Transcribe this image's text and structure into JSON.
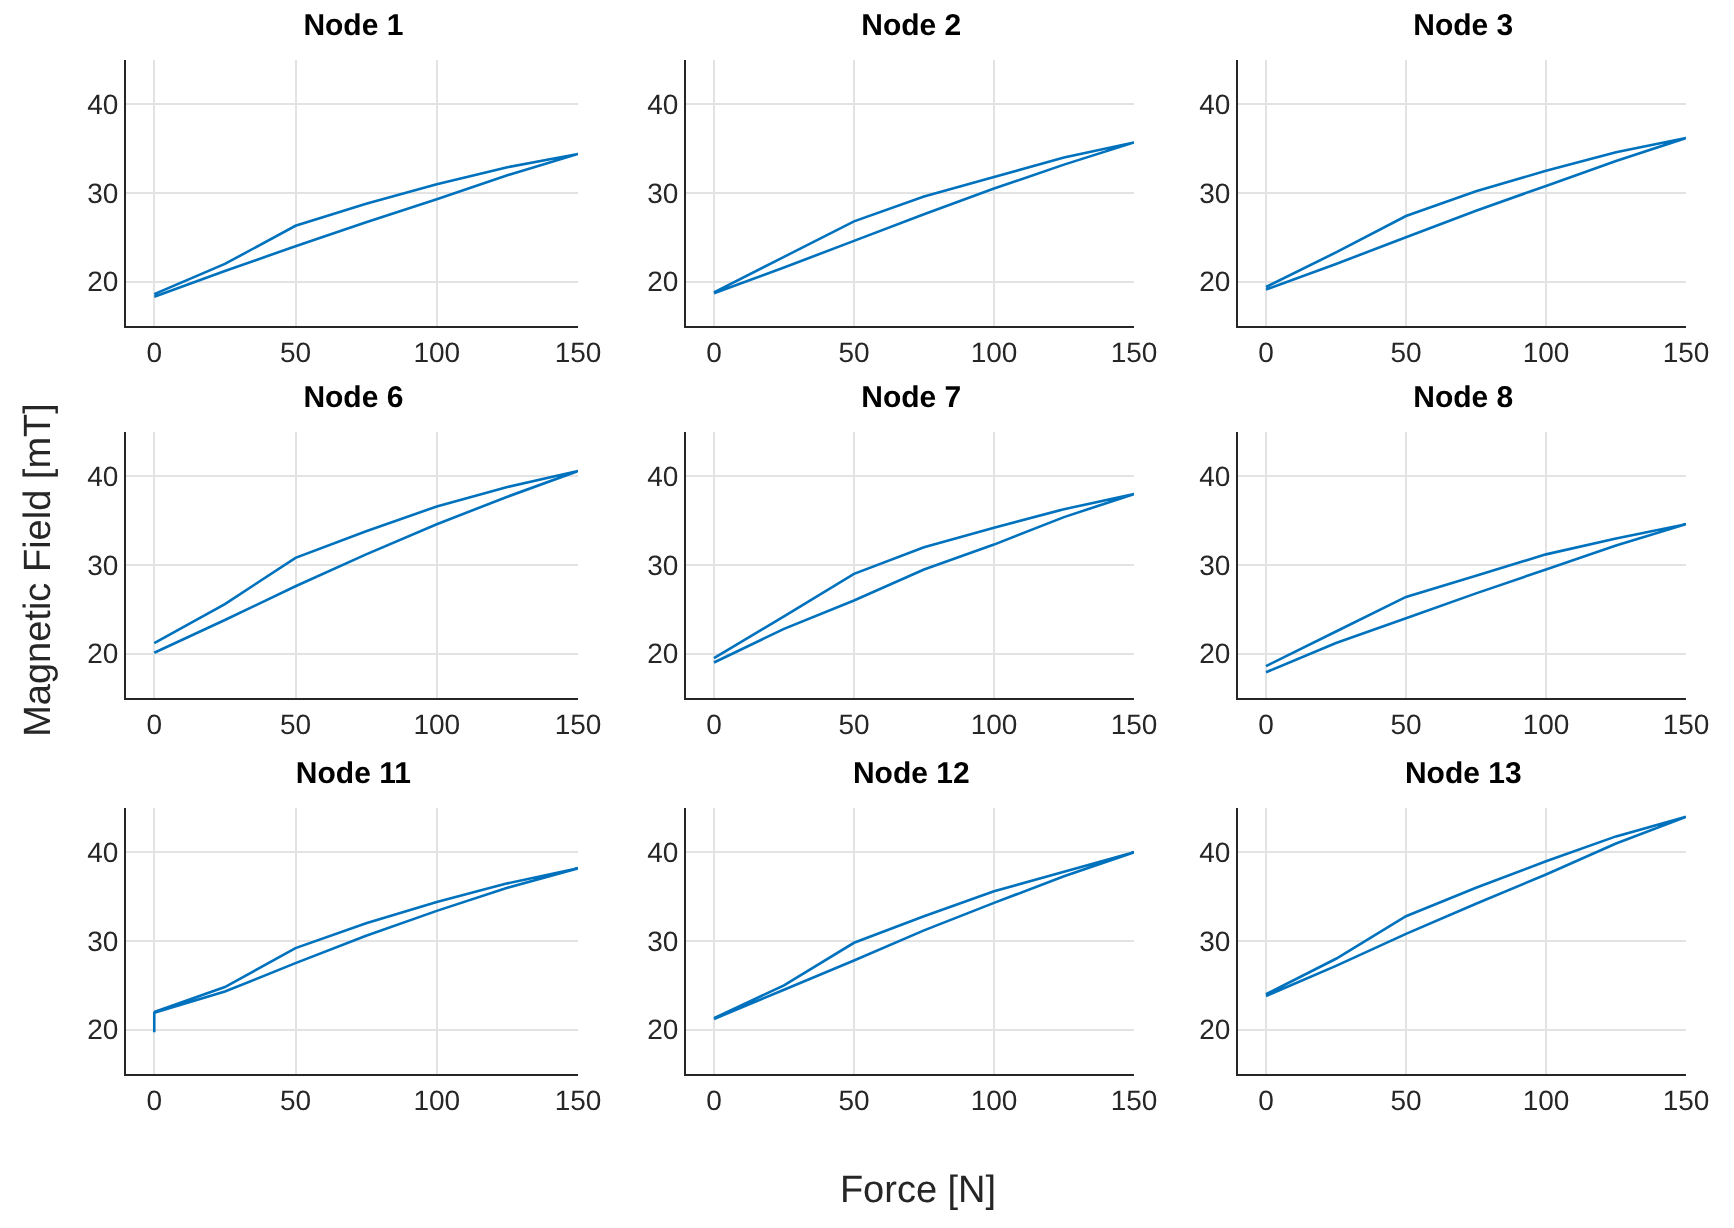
{
  "chart_data": [
    {
      "type": "line",
      "title": "Node 1",
      "x": [
        0,
        25,
        50,
        75,
        100,
        125,
        150,
        125,
        100,
        75,
        50,
        25,
        0
      ],
      "series": [
        {
          "color": "#0072bd",
          "values": [
            18.3,
            21.2,
            24,
            26.7,
            29.3,
            32,
            34.4,
            32.9,
            31,
            28.8,
            26.3,
            22,
            18.6
          ]
        }
      ],
      "xlim": [
        -10,
        150
      ],
      "ylim": [
        15,
        45
      ],
      "xticks": [
        0,
        50,
        100,
        150
      ],
      "yticks": [
        20,
        30,
        40
      ],
      "grid": true,
      "marker": "none",
      "line_style": "solid"
    },
    {
      "type": "line",
      "title": "Node 2",
      "x": [
        0,
        25,
        50,
        75,
        100,
        125,
        150,
        125,
        100,
        75,
        50,
        25,
        0
      ],
      "series": [
        {
          "color": "#0072bd",
          "values": [
            18.7,
            21.6,
            24.6,
            27.6,
            30.5,
            33.2,
            35.7,
            34,
            31.8,
            29.6,
            26.8,
            22.8,
            18.8
          ]
        }
      ],
      "xlim": [
        -10,
        150
      ],
      "ylim": [
        15,
        45
      ],
      "xticks": [
        0,
        50,
        100,
        150
      ],
      "yticks": [
        20,
        30,
        40
      ],
      "grid": true,
      "marker": "none",
      "line_style": "solid"
    },
    {
      "type": "line",
      "title": "Node 3",
      "x": [
        0,
        25,
        50,
        75,
        100,
        125,
        150,
        125,
        100,
        75,
        50,
        25,
        0
      ],
      "series": [
        {
          "color": "#0072bd",
          "values": [
            19.1,
            22,
            25,
            28,
            30.8,
            33.6,
            36.2,
            34.6,
            32.5,
            30.2,
            27.4,
            23.3,
            19.4
          ]
        }
      ],
      "xlim": [
        -10,
        150
      ],
      "ylim": [
        15,
        45
      ],
      "xticks": [
        0,
        50,
        100,
        150
      ],
      "yticks": [
        20,
        30,
        40
      ],
      "grid": true,
      "marker": "none",
      "line_style": "solid"
    },
    {
      "type": "line",
      "title": "Node 6",
      "ylabel": "Magnetic Field [mT]",
      "x": [
        0,
        25,
        50,
        75,
        100,
        125,
        150,
        125,
        100,
        75,
        50,
        25,
        0
      ],
      "series": [
        {
          "color": "#0072bd",
          "values": [
            20.1,
            23.8,
            27.6,
            31.2,
            34.6,
            37.7,
            40.6,
            38.8,
            36.6,
            33.8,
            30.8,
            25.6,
            21.2
          ]
        }
      ],
      "xlim": [
        -10,
        150
      ],
      "ylim": [
        15,
        45
      ],
      "xticks": [
        0,
        50,
        100,
        150
      ],
      "yticks": [
        20,
        30,
        40
      ],
      "grid": true,
      "marker": "none",
      "line_style": "solid"
    },
    {
      "type": "line",
      "title": "Node 7",
      "x": [
        0,
        25,
        50,
        75,
        100,
        125,
        150,
        125,
        100,
        75,
        50,
        25,
        0
      ],
      "series": [
        {
          "color": "#0072bd",
          "values": [
            19,
            22.8,
            26,
            29.5,
            32.3,
            35.4,
            38,
            36.3,
            34.2,
            32,
            29,
            24.2,
            19.5
          ]
        }
      ],
      "xlim": [
        -10,
        150
      ],
      "ylim": [
        15,
        45
      ],
      "xticks": [
        0,
        50,
        100,
        150
      ],
      "yticks": [
        20,
        30,
        40
      ],
      "grid": true,
      "marker": "none",
      "line_style": "solid"
    },
    {
      "type": "line",
      "title": "Node 8",
      "x": [
        0,
        25,
        50,
        75,
        100,
        125,
        150,
        125,
        100,
        75,
        50,
        25,
        0
      ],
      "series": [
        {
          "color": "#0072bd",
          "values": [
            17.9,
            21.2,
            24,
            26.8,
            29.5,
            32.2,
            34.6,
            33,
            31.2,
            28.8,
            26.4,
            22.5,
            18.6
          ]
        }
      ],
      "xlim": [
        -10,
        150
      ],
      "ylim": [
        15,
        45
      ],
      "xticks": [
        0,
        50,
        100,
        150
      ],
      "yticks": [
        20,
        30,
        40
      ],
      "grid": true,
      "marker": "none",
      "line_style": "solid"
    },
    {
      "type": "line",
      "title": "Node 11",
      "x": [
        0,
        0,
        25,
        50,
        75,
        100,
        125,
        150,
        125,
        100,
        75,
        50,
        25,
        0
      ],
      "series": [
        {
          "color": "#0072bd",
          "values": [
            19.7,
            21.9,
            24.3,
            27.5,
            30.6,
            33.4,
            36,
            38.2,
            36.5,
            34.4,
            32,
            29.2,
            24.8,
            22
          ]
        }
      ],
      "xlim": [
        -10,
        150
      ],
      "ylim": [
        15,
        45
      ],
      "xticks": [
        0,
        50,
        100,
        150
      ],
      "yticks": [
        20,
        30,
        40
      ],
      "grid": true,
      "marker": "none",
      "line_style": "solid"
    },
    {
      "type": "line",
      "title": "Node 12",
      "xlabel": "Force [N]",
      "x": [
        0,
        25,
        50,
        75,
        100,
        125,
        150,
        125,
        100,
        75,
        50,
        25,
        0
      ],
      "series": [
        {
          "color": "#0072bd",
          "values": [
            21.2,
            24.5,
            27.8,
            31.2,
            34.3,
            37.3,
            40,
            37.8,
            35.6,
            32.8,
            29.8,
            25,
            21.3
          ]
        }
      ],
      "xlim": [
        -10,
        150
      ],
      "ylim": [
        15,
        45
      ],
      "xticks": [
        0,
        50,
        100,
        150
      ],
      "yticks": [
        20,
        30,
        40
      ],
      "grid": true,
      "marker": "none",
      "line_style": "solid"
    },
    {
      "type": "line",
      "title": "Node 13",
      "x": [
        0,
        25,
        50,
        75,
        100,
        125,
        150,
        125,
        100,
        75,
        50,
        25,
        0
      ],
      "series": [
        {
          "color": "#0072bd",
          "values": [
            23.8,
            27.2,
            30.8,
            34.2,
            37.5,
            41,
            44,
            41.8,
            39,
            36,
            32.8,
            28,
            24
          ]
        }
      ],
      "xlim": [
        -10,
        150
      ],
      "ylim": [
        15,
        45
      ],
      "xticks": [
        0,
        50,
        100,
        150
      ],
      "yticks": [
        20,
        30,
        40
      ],
      "grid": true,
      "marker": "none",
      "line_style": "solid"
    }
  ]
}
